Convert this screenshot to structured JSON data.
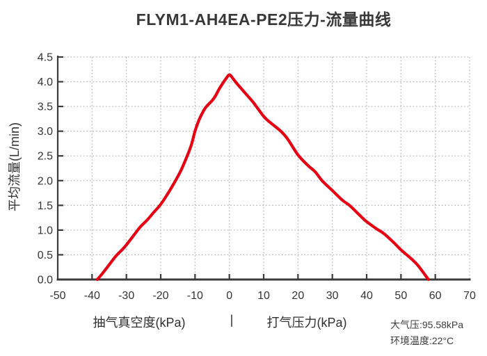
{
  "chart_data": {
    "type": "line",
    "title": "FLYM1-AH4EA-PE2压力-流量曲线",
    "ylabel": "平均流量(L/min)",
    "xlabel_left": "抽气真空度(kPa)",
    "xlabel_separator": "|",
    "xlabel_right": "打气压力(kPa)",
    "xlim": [
      -50,
      70
    ],
    "ylim": [
      0,
      4.5
    ],
    "x_ticks": [
      -50,
      -40,
      -30,
      -20,
      -10,
      0,
      10,
      20,
      30,
      40,
      50,
      60,
      70
    ],
    "y_ticks": [
      0,
      0.5,
      1,
      1.5,
      2,
      2.5,
      3,
      3.5,
      4,
      4.5
    ],
    "y_tick_labels": [
      "0.0",
      "0.5",
      "1.0",
      "1.5",
      "2.0",
      "2.5",
      "3.0",
      "3.5",
      "4.0",
      "4.5"
    ],
    "grid": true,
    "legend_position": "none",
    "series": [
      {
        "name": "压力-流量曲线",
        "color": "#e60012",
        "points": [
          [
            -38.5,
            0
          ],
          [
            -37,
            0.12
          ],
          [
            -35,
            0.3
          ],
          [
            -33,
            0.48
          ],
          [
            -31,
            0.62
          ],
          [
            -30,
            0.7
          ],
          [
            -28,
            0.88
          ],
          [
            -26,
            1.06
          ],
          [
            -24,
            1.2
          ],
          [
            -22,
            1.36
          ],
          [
            -20,
            1.52
          ],
          [
            -18,
            1.73
          ],
          [
            -16,
            1.96
          ],
          [
            -14,
            2.22
          ],
          [
            -12,
            2.55
          ],
          [
            -11,
            2.74
          ],
          [
            -10,
            3.0
          ],
          [
            -9,
            3.2
          ],
          [
            -8,
            3.35
          ],
          [
            -7,
            3.47
          ],
          [
            -6,
            3.55
          ],
          [
            -5,
            3.62
          ],
          [
            -4,
            3.72
          ],
          [
            -3,
            3.85
          ],
          [
            -2,
            3.96
          ],
          [
            -1,
            4.06
          ],
          [
            0,
            4.14
          ],
          [
            1,
            4.07
          ],
          [
            2,
            3.98
          ],
          [
            3,
            3.9
          ],
          [
            5,
            3.74
          ],
          [
            7,
            3.58
          ],
          [
            10,
            3.3
          ],
          [
            12,
            3.17
          ],
          [
            15,
            3.0
          ],
          [
            17,
            2.84
          ],
          [
            20,
            2.52
          ],
          [
            23,
            2.3
          ],
          [
            25,
            2.18
          ],
          [
            27,
            2.0
          ],
          [
            30,
            1.8
          ],
          [
            33,
            1.6
          ],
          [
            35,
            1.5
          ],
          [
            38,
            1.3
          ],
          [
            40,
            1.17
          ],
          [
            43,
            1.02
          ],
          [
            45,
            0.93
          ],
          [
            48,
            0.74
          ],
          [
            50,
            0.6
          ],
          [
            53,
            0.42
          ],
          [
            55,
            0.28
          ],
          [
            58,
            0
          ]
        ]
      }
    ],
    "annotations": [
      "大气压:95.58kPa",
      "环境温度:22°C"
    ]
  },
  "colors": {
    "curve": "#e60012",
    "axis": "#3a3a3a",
    "grid": "#b5b5b5",
    "tick_text": "#333333",
    "title_text": "#383838"
  }
}
